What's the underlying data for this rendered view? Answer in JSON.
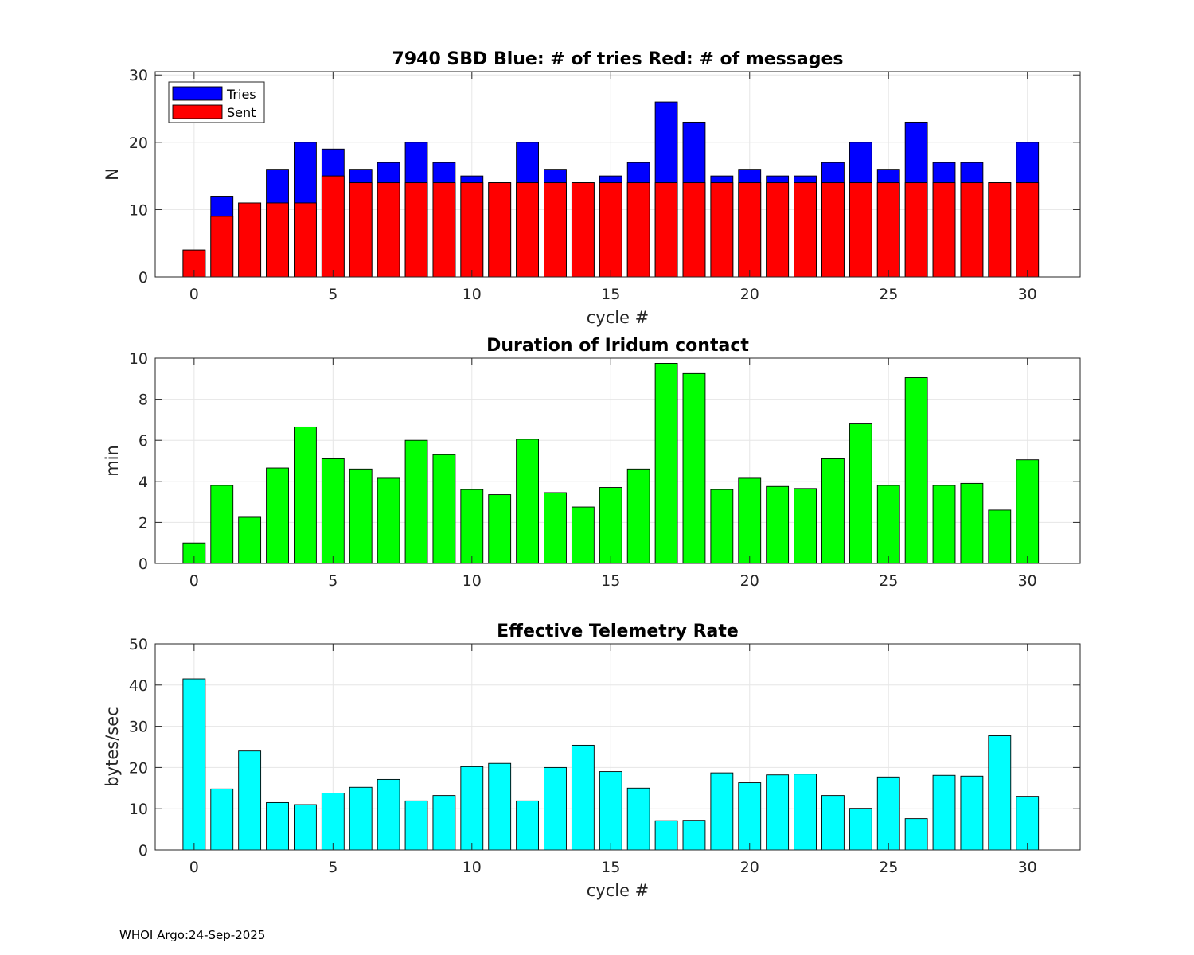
{
  "footer": "WHOI Argo:24-Sep-2025",
  "chart_data": [
    {
      "type": "bar",
      "title": "7940 SBD  Blue: # of tries   Red: # of messages",
      "xlabel": "cycle #",
      "ylabel": "N",
      "xlim": [
        -1.4,
        31.9
      ],
      "ylim": [
        0,
        30.5
      ],
      "xticks": [
        0,
        5,
        10,
        15,
        20,
        25,
        30
      ],
      "yticks": [
        0,
        10,
        20,
        30
      ],
      "grid": true,
      "legend": "top-left",
      "x": [
        0,
        1,
        2,
        3,
        4,
        5,
        6,
        7,
        8,
        9,
        10,
        11,
        12,
        13,
        14,
        15,
        16,
        17,
        18,
        19,
        20,
        21,
        22,
        23,
        24,
        25,
        26,
        27,
        28,
        29,
        30
      ],
      "series": [
        {
          "name": "Tries",
          "color": "#0000ff",
          "values": [
            4,
            12,
            11,
            16,
            20,
            19,
            16,
            17,
            20,
            17,
            15,
            14,
            20,
            16,
            14,
            15,
            17,
            26,
            23,
            15,
            16,
            15,
            15,
            17,
            20,
            16,
            23,
            17,
            17,
            14,
            20
          ]
        },
        {
          "name": "Sent",
          "color": "#ff0000",
          "values": [
            4,
            9,
            11,
            11,
            11,
            15,
            14,
            14,
            14,
            14,
            14,
            14,
            14,
            14,
            14,
            14,
            14,
            14,
            14,
            14,
            14,
            14,
            14,
            14,
            14,
            14,
            14,
            14,
            14,
            14,
            14
          ]
        }
      ]
    },
    {
      "type": "bar",
      "title": "Duration of Iridum contact",
      "xlabel": "",
      "ylabel": "min",
      "xlim": [
        -1.4,
        31.9
      ],
      "ylim": [
        0,
        10
      ],
      "xticks": [
        0,
        5,
        10,
        15,
        20,
        25,
        30
      ],
      "yticks": [
        0,
        2,
        4,
        6,
        8,
        10
      ],
      "grid": true,
      "x": [
        -1,
        0,
        1,
        2,
        3,
        4,
        5,
        6,
        7,
        8,
        9,
        10,
        11,
        12,
        13,
        14,
        15,
        16,
        17,
        18,
        19,
        20,
        21,
        22,
        23,
        24,
        25,
        26,
        27,
        28,
        29,
        30
      ],
      "series": [
        {
          "name": "Duration",
          "color": "#00ff00",
          "values": [
            0,
            1.0,
            3.8,
            2.25,
            4.65,
            6.65,
            5.1,
            4.6,
            4.15,
            6.0,
            5.3,
            3.6,
            3.35,
            6.05,
            3.45,
            2.75,
            3.7,
            4.6,
            9.75,
            9.25,
            3.6,
            4.15,
            3.75,
            3.65,
            5.1,
            6.8,
            3.8,
            9.05,
            3.8,
            3.9,
            2.6,
            5.05
          ]
        }
      ]
    },
    {
      "type": "bar",
      "title": "Effective Telemetry Rate",
      "xlabel": "cycle #",
      "ylabel": "bytes/sec",
      "xlim": [
        -1.4,
        31.9
      ],
      "ylim": [
        0,
        50
      ],
      "xticks": [
        0,
        5,
        10,
        15,
        20,
        25,
        30
      ],
      "yticks": [
        0,
        10,
        20,
        30,
        40,
        50
      ],
      "grid": true,
      "x": [
        0,
        1,
        2,
        3,
        4,
        5,
        6,
        7,
        8,
        9,
        10,
        11,
        12,
        13,
        14,
        15,
        16,
        17,
        18,
        19,
        20,
        21,
        22,
        23,
        24,
        25,
        26,
        27,
        28,
        29,
        30
      ],
      "series": [
        {
          "name": "Rate",
          "color": "#00ffff",
          "values": [
            41.5,
            14.8,
            24.0,
            11.5,
            11.0,
            13.8,
            15.2,
            17.1,
            11.9,
            13.2,
            20.2,
            21.0,
            11.9,
            20.0,
            25.4,
            19.0,
            15.0,
            7.1,
            7.2,
            18.7,
            16.3,
            18.2,
            18.4,
            13.2,
            10.1,
            17.7,
            7.6,
            18.1,
            17.9,
            27.7,
            13.0
          ]
        }
      ]
    }
  ],
  "colors": {
    "axis": "#000000",
    "grid": "#e6e6e6",
    "text": "#262626"
  }
}
